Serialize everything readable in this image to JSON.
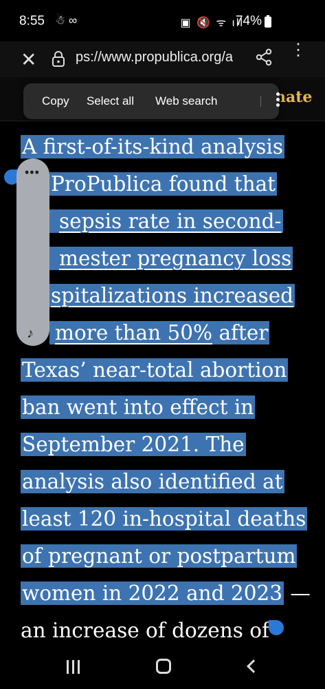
{
  "status_bar": {
    "time": "8:55",
    "left_icons": "☃ ∞",
    "right_icons": "▣ 🔇 ᯤ ıll",
    "battery": "74%"
  },
  "browser": {
    "url": "ps://www.propublica.org/a",
    "close_icon": "close-icon",
    "lock_icon": "lock-icon",
    "share_icon": "share-icon",
    "menu_icon": "more-vert-icon",
    "donate_partial": "nate"
  },
  "context_menu": {
    "copy": "Copy",
    "select_all": "Select all",
    "web_search": "Web search"
  },
  "article": {
    "lines": [
      "A first-of-its-kind analysis",
      "ProPublica found that",
      "sepsis rate in second-",
      "mester pregnancy loss",
      "spitalizations increased",
      "more than 50%",
      "after",
      "Texas’ near-total abortion",
      "ban went into effect in",
      "September 2021. The",
      "analysis also identified at",
      "least 120 in-hospital deaths",
      "of pregnant or postpartum",
      "women in 2022 and 2023",
      " —",
      "an increase of dozens of"
    ]
  },
  "edge_panel": {
    "dots": "•••",
    "note": "♪"
  },
  "colors": {
    "selection": "#3d73b0",
    "handle": "#2a79d7",
    "donate": "#e8b949"
  }
}
